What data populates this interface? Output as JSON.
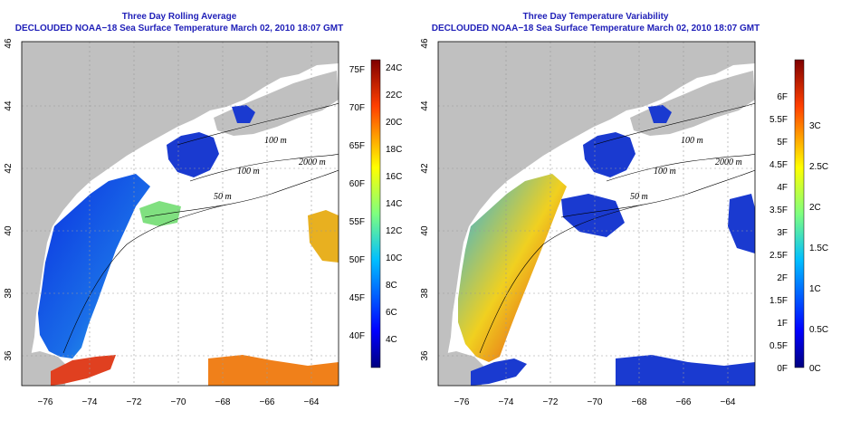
{
  "panels": [
    {
      "title_line1": "Three Day Rolling Average",
      "title_line2": "DECLOUDED NOAA−18 Sea Surface Temperature March 02, 2010 18:07 GMT",
      "lon_ticks": [
        "−76",
        "−74",
        "−72",
        "−70",
        "−68",
        "−66",
        "−64"
      ],
      "lat_ticks": [
        "46",
        "44",
        "42",
        "40",
        "38",
        "36"
      ],
      "contour_labels": [
        "100 m",
        "100 m",
        "2000 m",
        "50 m"
      ],
      "colorbar_left": [
        "75F",
        "70F",
        "65F",
        "60F",
        "55F",
        "50F",
        "45F",
        "40F"
      ],
      "colorbar_right": [
        "24C",
        "22C",
        "20C",
        "18C",
        "16C",
        "14C",
        "12C",
        "10C",
        "8C",
        "6C",
        "4C"
      ]
    },
    {
      "title_line1": "Three Day Temperature Variability",
      "title_line2": "DECLOUDED NOAA−18 Sea Surface Temperature March 02, 2010 18:07 GMT",
      "lon_ticks": [
        "−76",
        "−74",
        "−72",
        "−70",
        "−68",
        "−66",
        "−64"
      ],
      "lat_ticks": [
        "46",
        "44",
        "42",
        "40",
        "38",
        "36"
      ],
      "contour_labels": [
        "100 m",
        "100 m",
        "2000 m",
        "50 m"
      ],
      "colorbar_left": [
        "6F",
        "5.5F",
        "5F",
        "4.5F",
        "4F",
        "3.5F",
        "3F",
        "2.5F",
        "2F",
        "1.5F",
        "1F",
        "0.5F",
        "0F"
      ],
      "colorbar_right": [
        "3C",
        "2.5C",
        "2C",
        "1.5C",
        "1C",
        "0.5C",
        "0C"
      ]
    }
  ],
  "colors": {
    "title": "#1f1fb8",
    "land": "#c0c0c0",
    "ocean_blank": "#ffffff",
    "grid": "#999999"
  }
}
